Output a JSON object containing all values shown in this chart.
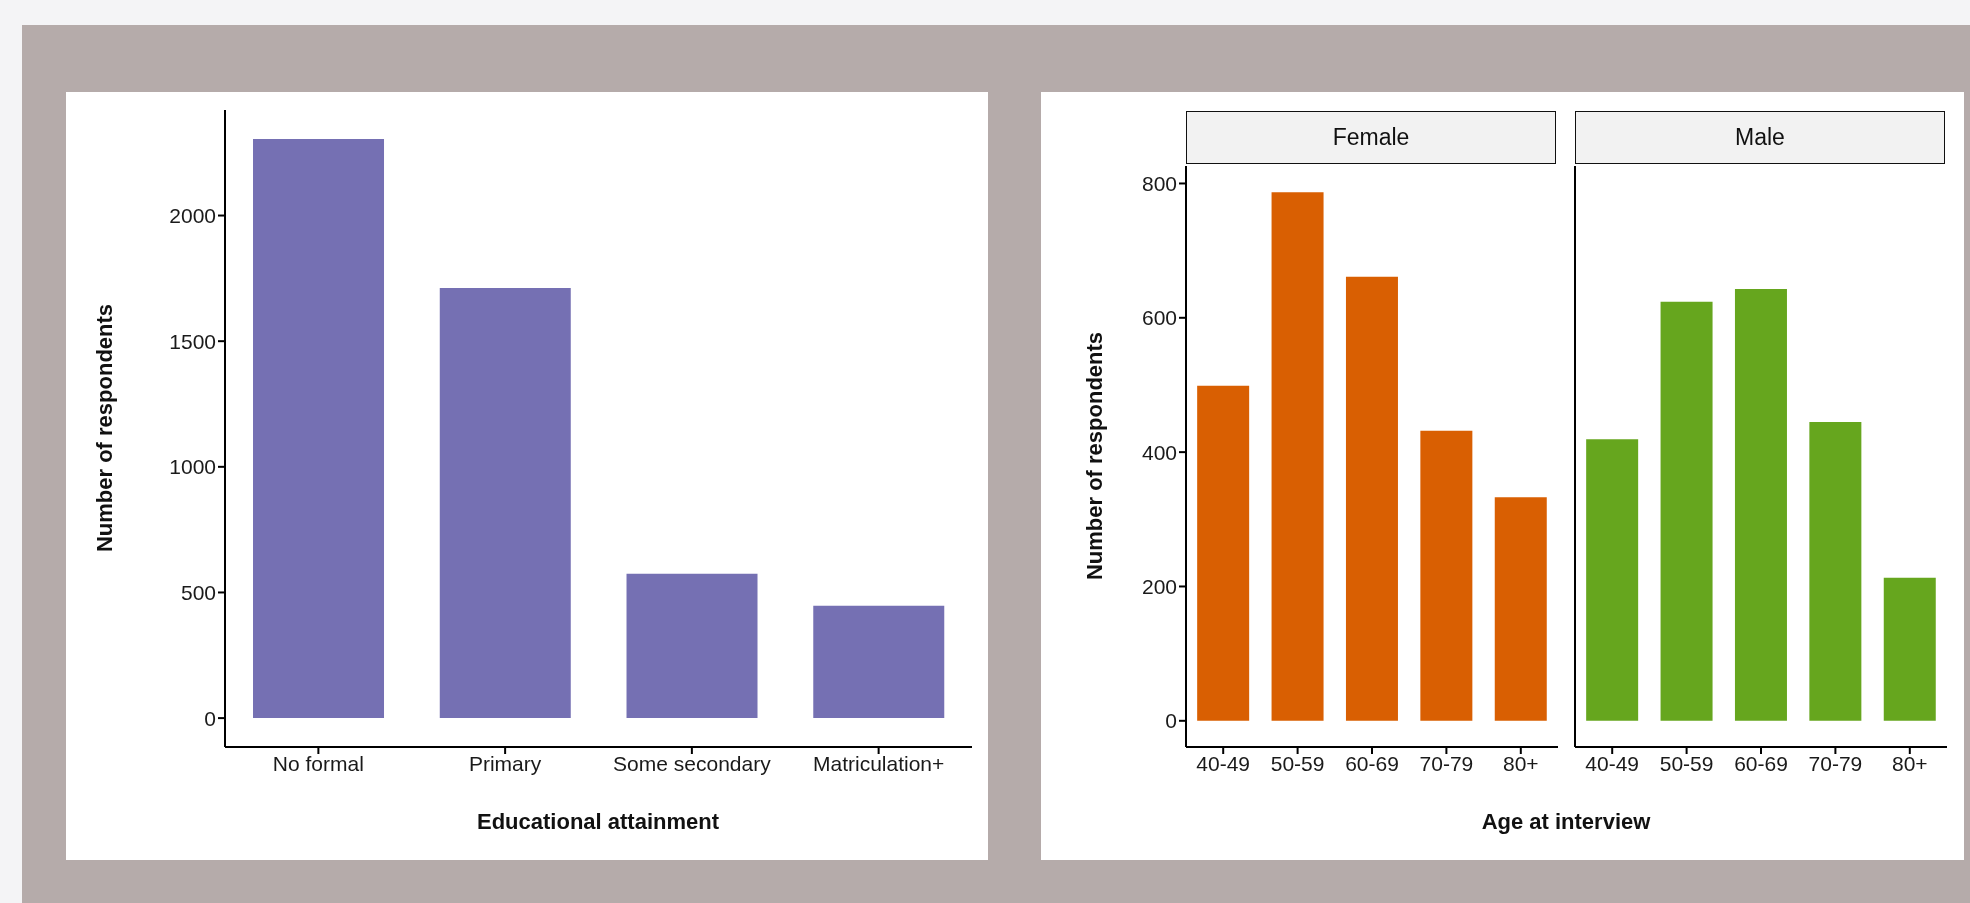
{
  "chart_data": [
    {
      "type": "bar",
      "xlabel": "Educational attainment",
      "ylabel": "Number of respondents",
      "categories": [
        "No formal",
        "Primary",
        "Some secondary",
        "Matriculation+"
      ],
      "values": [
        2305,
        1712,
        574,
        447
      ],
      "color": "#7570b3",
      "ylim": [
        -115,
        2420
      ],
      "yticks": [
        0,
        500,
        1000,
        1500,
        2000
      ],
      "grid": false,
      "legend": false
    },
    {
      "type": "bar",
      "title": "Female",
      "xlabel": "Age at interview",
      "ylabel": "Number of respondents",
      "categories": [
        "40-49",
        "50-59",
        "60-69",
        "70-79",
        "80+"
      ],
      "values": [
        499,
        787,
        661,
        432,
        333
      ],
      "color": "#d95f02",
      "ylim": [
        -39,
        826
      ],
      "yticks": [
        0,
        200,
        400,
        600,
        800
      ],
      "grid": false,
      "legend": false
    },
    {
      "type": "bar",
      "title": "Male",
      "categories": [
        "40-49",
        "50-59",
        "60-69",
        "70-79",
        "80+"
      ],
      "values": [
        419,
        624,
        643,
        445,
        213
      ],
      "color": "#66a61e",
      "ylim": [
        -39,
        826
      ],
      "yticks": [
        0,
        200,
        400,
        600,
        800
      ],
      "grid": false,
      "legend": false,
      "tick_labels": "x"
    }
  ]
}
